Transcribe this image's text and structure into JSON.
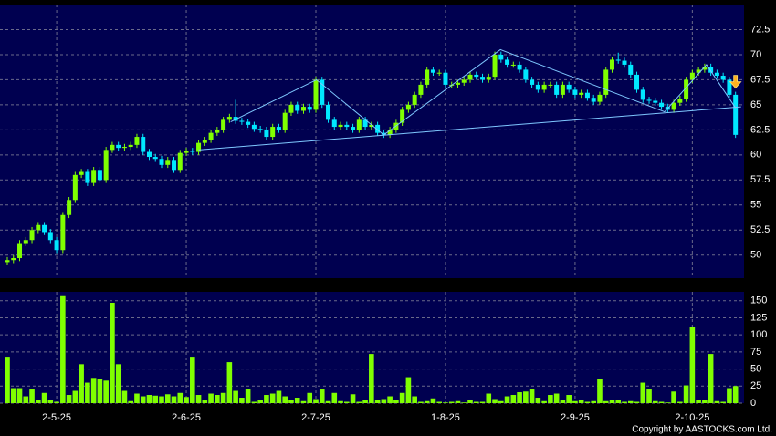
{
  "chart_data": {
    "type": "candlestick",
    "categories": [
      null,
      null,
      null,
      null,
      null,
      null,
      null,
      null,
      "2-5-25",
      null,
      null,
      null,
      null,
      null,
      null,
      null,
      null,
      null,
      null,
      null,
      null,
      null,
      null,
      null,
      null,
      null,
      null,
      null,
      null,
      "2-6-25",
      null,
      null,
      null,
      null,
      null,
      null,
      null,
      null,
      null,
      null,
      null,
      null,
      null,
      null,
      null,
      null,
      null,
      null,
      null,
      null,
      "2-7-25",
      null,
      null,
      null,
      null,
      null,
      null,
      null,
      null,
      null,
      null,
      null,
      null,
      null,
      null,
      null,
      null,
      null,
      null,
      null,
      null,
      "1-8-25",
      null,
      null,
      null,
      null,
      null,
      null,
      null,
      null,
      null,
      null,
      null,
      null,
      null,
      null,
      null,
      null,
      null,
      null,
      null,
      null,
      "2-9-25",
      null,
      null,
      null,
      null,
      null,
      null,
      null,
      null,
      null,
      null,
      null,
      null,
      null,
      null,
      null,
      null,
      null,
      null,
      "2-10-25",
      null,
      null,
      null,
      null,
      null,
      null,
      null
    ],
    "open": [
      49.3,
      49.5,
      49.7,
      51.2,
      51.5,
      52.5,
      53,
      52.3,
      51.5,
      50.5,
      54,
      55.5,
      58,
      58.3,
      57.2,
      58.5,
      57.5,
      60.5,
      61,
      60.7,
      60.8,
      61,
      61.8,
      60.3,
      59.8,
      59.6,
      59,
      59.5,
      58.5,
      60.2,
      60.4,
      60.3,
      61.2,
      61.5,
      62.2,
      62.5,
      63.5,
      63.8,
      63.4,
      63.3,
      63,
      62.6,
      62.5,
      61.8,
      62.8,
      62.5,
      64.2,
      65,
      64.4,
      64.8,
      64.5,
      67.5,
      65,
      63.5,
      62.8,
      63,
      62.8,
      62.5,
      63.5,
      62.8,
      63,
      62.2,
      62,
      62.5,
      63.2,
      64.5,
      65,
      66,
      67,
      68.5,
      68.2,
      68.2,
      67,
      67,
      67.2,
      67.5,
      68,
      67.8,
      67.5,
      67.8,
      70,
      69.5,
      69,
      69,
      68.5,
      67.5,
      67,
      66.5,
      67,
      67,
      66,
      67,
      66.5,
      66,
      66.2,
      65.7,
      65.3,
      66,
      68.5,
      69.5,
      69.4,
      69,
      68,
      66.5,
      65.5,
      65.4,
      65.2,
      64.8,
      64.5,
      65.2,
      65.6,
      67.5,
      68.2,
      68.5,
      68.8,
      68.2,
      67.9,
      67.5,
      66
    ],
    "high": [
      49.8,
      50.0,
      51.5,
      51.8,
      52.8,
      53.3,
      53.3,
      52.6,
      51.8,
      54.3,
      55.8,
      58.3,
      58.6,
      58.6,
      58.8,
      58.8,
      60.8,
      61.3,
      61.3,
      61.1,
      61.3,
      62.1,
      62.1,
      60.6,
      60.1,
      59.9,
      59.8,
      59.8,
      60.5,
      60.7,
      60.7,
      61.5,
      61.8,
      62.5,
      62.8,
      63.8,
      64.1,
      65.5,
      63.7,
      63.6,
      63.3,
      62.9,
      62.8,
      63.1,
      63.1,
      64.5,
      65.3,
      65.3,
      65.1,
      65.1,
      67.8,
      67.8,
      65.3,
      63.8,
      63.3,
      63.3,
      63.1,
      63.8,
      63.8,
      63.3,
      63.3,
      62.5,
      62.8,
      63.5,
      64.8,
      65.3,
      66.3,
      67.3,
      68.8,
      68.8,
      68.5,
      68.5,
      67.3,
      67.5,
      67.8,
      68.3,
      68.3,
      68.1,
      68.1,
      70.3,
      70.3,
      69.8,
      69.3,
      69.3,
      68.8,
      67.8,
      67.3,
      67.3,
      67.3,
      67.3,
      67.3,
      67.3,
      66.8,
      66.5,
      66.5,
      66.0,
      66.3,
      68.8,
      69.8,
      70.2,
      69.7,
      69.3,
      68.3,
      66.8,
      65.8,
      65.7,
      65.5,
      65.1,
      65.5,
      65.9,
      67.8,
      68.5,
      68.8,
      69.1,
      69.1,
      68.5,
      68.2,
      67.8,
      66.3
    ],
    "low": [
      49.0,
      49.2,
      49.4,
      50.9,
      51.2,
      52.2,
      52.0,
      51.2,
      50.2,
      50.2,
      53.7,
      55.2,
      57.7,
      56.9,
      56.9,
      57.2,
      57.2,
      60.2,
      60.4,
      60.4,
      60.5,
      60.7,
      60.0,
      59.5,
      59.3,
      58.7,
      58.7,
      58.2,
      58.2,
      59.9,
      60.0,
      60.0,
      60.9,
      61.2,
      61.9,
      62.2,
      63.2,
      63.1,
      63.0,
      62.7,
      62.3,
      62.2,
      61.5,
      61.5,
      62.2,
      62.2,
      63.9,
      64.1,
      64.1,
      64.2,
      64.2,
      64.7,
      63.2,
      62.5,
      62.5,
      62.5,
      62.2,
      62.2,
      62.5,
      62.5,
      61.9,
      61.7,
      61.7,
      62.2,
      62.9,
      64.2,
      64.7,
      65.7,
      66.7,
      67.9,
      67.9,
      66.7,
      66.7,
      66.7,
      66.9,
      67.2,
      67.5,
      67.2,
      67.2,
      67.5,
      69.2,
      68.7,
      68.7,
      68.2,
      67.2,
      66.7,
      66.2,
      66.2,
      66.7,
      65.7,
      65.7,
      66.2,
      65.7,
      65.7,
      65.4,
      65.0,
      65.0,
      65.7,
      68.2,
      69.1,
      68.7,
      67.7,
      66.2,
      65.2,
      65.1,
      64.9,
      64.5,
      64.2,
      64.2,
      64.9,
      65.3,
      67.2,
      67.9,
      68.2,
      67.9,
      67.6,
      67.2,
      65.7,
      61.7
    ],
    "close": [
      49.5,
      49.7,
      51.2,
      51.5,
      52.5,
      53,
      52.3,
      51.5,
      50.5,
      54,
      55.5,
      58,
      58.3,
      57.2,
      58.5,
      57.5,
      60.5,
      61,
      60.7,
      60.8,
      61,
      61.8,
      60.3,
      59.8,
      59.6,
      59,
      59.5,
      58.5,
      60.2,
      60.4,
      60.3,
      61.2,
      61.5,
      62.2,
      62.5,
      63.5,
      63.8,
      63.4,
      63.3,
      63,
      62.6,
      62.5,
      61.8,
      62.8,
      62.5,
      64.2,
      65,
      64.4,
      64.8,
      64.5,
      67.5,
      65,
      63.5,
      62.8,
      63,
      62.8,
      62.5,
      63.5,
      62.8,
      63,
      62.2,
      62,
      62.5,
      63.2,
      64.5,
      65,
      66,
      67,
      68.5,
      68.2,
      68.2,
      67,
      67,
      67.2,
      67.5,
      68,
      67.8,
      67.5,
      67.8,
      70,
      69.5,
      69,
      69,
      68.5,
      67.5,
      67,
      66.5,
      67,
      67,
      66,
      67,
      66.5,
      66,
      66.2,
      65.7,
      65.3,
      66,
      68.5,
      69.5,
      69.4,
      69,
      68,
      66.5,
      65.5,
      65.4,
      65.2,
      64.8,
      64.5,
      65.2,
      65.6,
      67.5,
      68.2,
      68.5,
      68.8,
      68.2,
      67.9,
      67.5,
      66,
      62
    ],
    "up_color": "#80ff00",
    "down_color": "#00e8ff",
    "ylim": [
      47.7,
      75
    ],
    "yticks": [
      50,
      52.5,
      55,
      57.5,
      60,
      62.5,
      65,
      67.5,
      70,
      72.5
    ],
    "grid": true,
    "trendlines": [
      {
        "x": [
          31,
          118.9
        ],
        "values": [
          60.5,
          64.8
        ]
      },
      {
        "x": [
          36.2,
          50.1,
          61,
          79.9,
          106.5,
          113.3,
          118
        ],
        "values": [
          63.3,
          67.5,
          62,
          70.5,
          64.3,
          69,
          64.7
        ]
      }
    ],
    "volume": {
      "values": [
        68,
        22,
        22,
        10,
        20,
        5,
        15,
        4,
        2,
        158,
        12,
        18,
        57,
        30,
        37,
        35,
        33,
        147,
        57,
        18,
        3,
        14,
        10,
        12,
        11,
        10,
        13,
        10,
        15,
        9,
        68,
        12,
        5,
        14,
        12,
        15,
        60,
        18,
        8,
        20,
        2,
        4,
        12,
        14,
        18,
        10,
        5,
        8,
        3,
        15,
        6,
        20,
        3,
        15,
        3,
        2,
        13,
        2,
        5,
        72,
        5,
        6,
        10,
        5,
        15,
        38,
        10,
        2,
        3,
        7,
        2,
        1,
        2,
        3,
        1,
        5,
        2,
        2,
        14,
        6,
        3,
        10,
        12,
        16,
        17,
        20,
        8,
        3,
        12,
        14,
        4,
        12,
        3,
        5,
        2,
        3,
        35,
        3,
        5,
        5,
        2,
        3,
        2,
        30,
        20,
        3,
        2,
        1,
        17,
        2,
        26,
        112,
        5,
        5,
        72,
        3,
        2,
        22,
        25
      ],
      "color": "#80ff00",
      "ylim": [
        0,
        163
      ],
      "yticks": [
        0,
        25,
        50,
        75,
        100,
        125,
        150
      ]
    }
  },
  "footer": "Copyright by AASTOCKS.com Ltd."
}
